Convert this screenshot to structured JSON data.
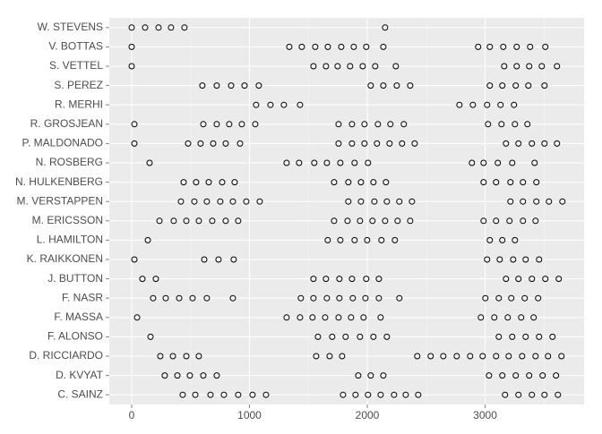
{
  "chart_data": {
    "type": "dot",
    "categories": [
      "W. STEVENS",
      "V. BOTTAS",
      "S. VETTEL",
      "S. PEREZ",
      "R. MERHI",
      "R. GROSJEAN",
      "P. MALDONADO",
      "N. ROSBERG",
      "N. HULKENBERG",
      "M. VERSTAPPEN",
      "M. ERICSSON",
      "L. HAMILTON",
      "K. RAIKKONEN",
      "J. BUTTON",
      "F. NASR",
      "F. MASSA",
      "F. ALONSO",
      "D. RICCIARDO",
      "D. KVYAT",
      "C. SAINZ"
    ],
    "values": [
      [
        0,
        114,
        228,
        334,
        448,
        2151
      ],
      [
        0,
        1338,
        1444,
        1558,
        1665,
        1779,
        1885,
        1991,
        2136,
        2941,
        3040,
        3154,
        3268,
        3382,
        3511
      ],
      [
        0,
        1543,
        1649,
        1748,
        1854,
        1961,
        2067,
        2242,
        3162,
        3268,
        3374,
        3481,
        3610
      ],
      [
        600,
        722,
        844,
        958,
        1079,
        2029,
        2136,
        2250,
        2364,
        3040,
        3146,
        3260,
        3367,
        3504
      ],
      [
        1056,
        1178,
        1292,
        1429,
        2782,
        2896,
        3017,
        3131,
        3245
      ],
      [
        23,
        608,
        722,
        828,
        935,
        1049,
        1756,
        1870,
        1976,
        2090,
        2196,
        2310,
        3025,
        3139,
        3253,
        3359
      ],
      [
        23,
        479,
        585,
        692,
        798,
        920,
        1756,
        1870,
        1976,
        2082,
        2189,
        2295,
        2402,
        3177,
        3283,
        3397,
        3504,
        3610
      ],
      [
        152,
        1315,
        1421,
        1550,
        1657,
        1771,
        1892,
        2006,
        2888,
        2987,
        3108,
        3230,
        3420
      ],
      [
        441,
        547,
        654,
        768,
        874,
        1718,
        1839,
        1946,
        2052,
        2158,
        2987,
        3093,
        3215,
        3321,
        3435
      ],
      [
        418,
        532,
        638,
        752,
        859,
        973,
        1087,
        1839,
        1946,
        2060,
        2166,
        2272,
        2379,
        3215,
        3321,
        3435,
        3542,
        3656
      ],
      [
        236,
        357,
        464,
        570,
        684,
        798,
        904,
        1718,
        1832,
        1938,
        2044,
        2151,
        2257,
        2364,
        2987,
        3093,
        3207,
        3321,
        3428
      ],
      [
        137,
        1664,
        1771,
        1892,
        1999,
        2120,
        2234,
        3040,
        3146,
        3253
      ],
      [
        23,
        616,
        737,
        866,
        3017,
        3124,
        3238,
        3344,
        3458
      ],
      [
        91,
        205,
        1543,
        1649,
        1763,
        1870,
        1991,
        2098,
        3177,
        3283,
        3397,
        3511,
        3625
      ],
      [
        182,
        289,
        403,
        517,
        638,
        859,
        1436,
        1543,
        1657,
        1763,
        1877,
        1984,
        2098,
        2272,
        3002,
        3116,
        3222,
        3336,
        3450
      ],
      [
        46,
        1315,
        1429,
        1535,
        1642,
        1756,
        1862,
        1968,
        2113,
        2964,
        3078,
        3192,
        3306,
        3412
      ],
      [
        160,
        1581,
        1702,
        1816,
        1938,
        2052,
        2166,
        3116,
        3230,
        3344,
        3458,
        3572
      ],
      [
        243,
        350,
        464,
        570,
        1566,
        1680,
        1786,
        2424,
        2538,
        2645,
        2759,
        2873,
        2979,
        3093,
        3200,
        3314,
        3428,
        3534,
        3648
      ],
      [
        281,
        388,
        494,
        608,
        722,
        1923,
        2029,
        2136,
        3033,
        3146,
        3260,
        3374,
        3488,
        3602
      ],
      [
        433,
        540,
        669,
        783,
        904,
        1026,
        1140,
        1794,
        1900,
        2006,
        2113,
        2227,
        2326,
        2432,
        3169,
        3283,
        3397,
        3504,
        3618
      ]
    ],
    "xlim": [
      -190,
      3840
    ],
    "xticks": [
      0,
      1000,
      2000,
      3000
    ],
    "grid": true,
    "color": "#000000"
  }
}
